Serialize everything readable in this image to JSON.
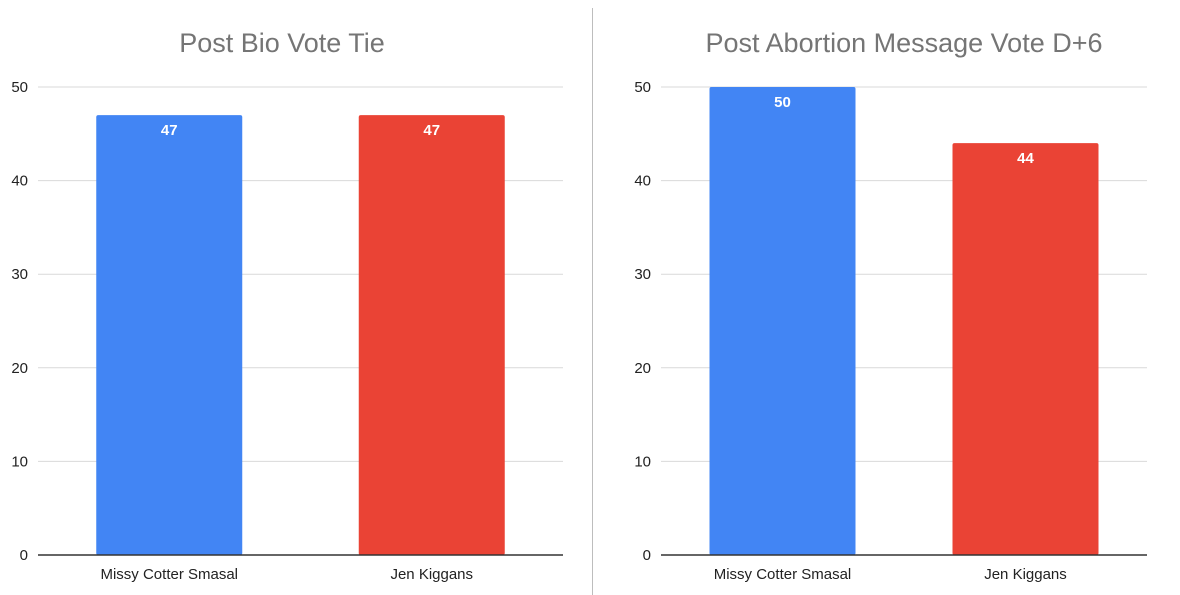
{
  "chart_data": [
    {
      "type": "bar",
      "title": "Post Bio Vote Tie",
      "categories": [
        "Missy Cotter Smasal",
        "Jen Kiggans"
      ],
      "values": [
        47,
        47
      ],
      "colors": [
        "#4285f4",
        "#ea4335"
      ],
      "data_labels": [
        "47",
        "47"
      ],
      "xlabel": "",
      "ylabel": "",
      "ylim": [
        0,
        50
      ],
      "yticks": [
        0,
        10,
        20,
        30,
        40,
        50
      ],
      "ytick_labels": [
        "0",
        "10",
        "20",
        "30",
        "40",
        "50"
      ],
      "grid": true,
      "legend": "none"
    },
    {
      "type": "bar",
      "title": "Post Abortion Message Vote D+6",
      "categories": [
        "Missy Cotter Smasal",
        "Jen Kiggans"
      ],
      "values": [
        50,
        44
      ],
      "colors": [
        "#4285f4",
        "#ea4335"
      ],
      "data_labels": [
        "50",
        "44"
      ],
      "xlabel": "",
      "ylabel": "",
      "ylim": [
        0,
        50
      ],
      "yticks": [
        0,
        10,
        20,
        30,
        40,
        50
      ],
      "ytick_labels": [
        "0",
        "10",
        "20",
        "30",
        "40",
        "50"
      ],
      "grid": true,
      "legend": "none"
    }
  ],
  "colors": {
    "gridline": "#d9d9d9",
    "baseline": "#333333",
    "divider": "#bdbdbd",
    "title": "#757575"
  }
}
